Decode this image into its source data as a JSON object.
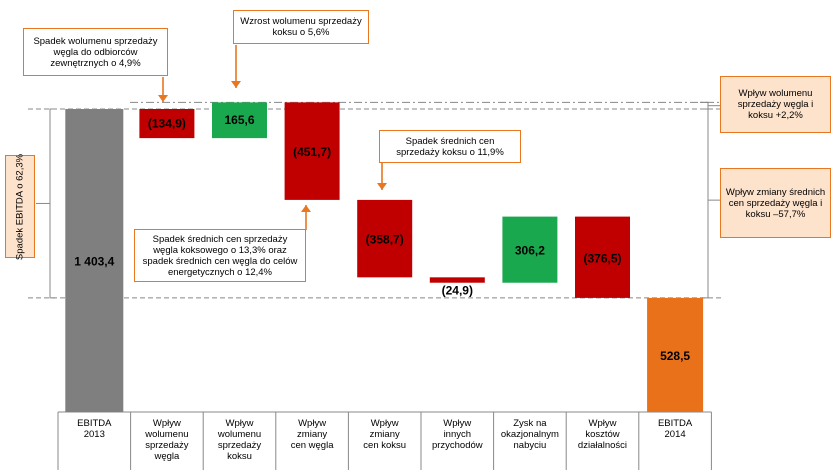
{
  "chart_data": {
    "type": "bar",
    "subtype": "waterfall",
    "categories": [
      "EBITDA\n2013",
      "Wpływ\nwolumenu\nsprzedaży\nwęgla",
      "Wpływ\nwolumenu\nsprzedaży\nkoksu",
      "Wpływ\nzmiany\ncen węgla",
      "Wpływ\nzmiany\ncen koksu",
      "Wpływ\ninnych\nprzychodów",
      "Zysk na\nokazjonalnym\nnabyciu",
      "Wpływ\nkosztów\ndziałalności",
      "EBITDA\n2014"
    ],
    "values": [
      1403.4,
      -134.9,
      165.6,
      -451.7,
      -358.7,
      -24.9,
      306.2,
      -376.5,
      528.5
    ],
    "labels": [
      "1 403,4",
      "(134,9)",
      "165,6",
      "(451,7)",
      "(358,7)",
      "(24,9)",
      "306,2",
      "(376,5)",
      "528,5"
    ],
    "kinds": [
      "total",
      "delta",
      "delta",
      "delta",
      "delta",
      "delta",
      "delta",
      "delta",
      "total"
    ],
    "colors": {
      "total_start": "#7f7f7f",
      "negative": "#c00000",
      "positive": "#1aa84f",
      "total_end": "#e8711a",
      "callout_border": "#e87722",
      "callout_fill": "#fde2cc"
    }
  },
  "annotations": {
    "coal_volume": "Spadek wolumenu sprzedaży węgla do odbiorców zewnętrznych o 4,9%",
    "coke_volume": "Wzrost wolumenu sprzedaży koksu o 5,6%",
    "coke_price": "Spadek średnich cen sprzedaży koksu o 11,9%",
    "coal_price": "Spadek średnich cen sprzedaży węgla koksowego o 13,3% oraz spadek średnich cen węgla do celów energetycznych o 12,4%",
    "ebitda_drop": "Spadek EBITDA o 62,3%",
    "volume_impact": "Wpływ wolumenu sprzedaży węgla i koksu +2,2%",
    "price_impact": "Wpływ zmiany średnich cen sprzedaży węgla i koksu –57,7%"
  }
}
